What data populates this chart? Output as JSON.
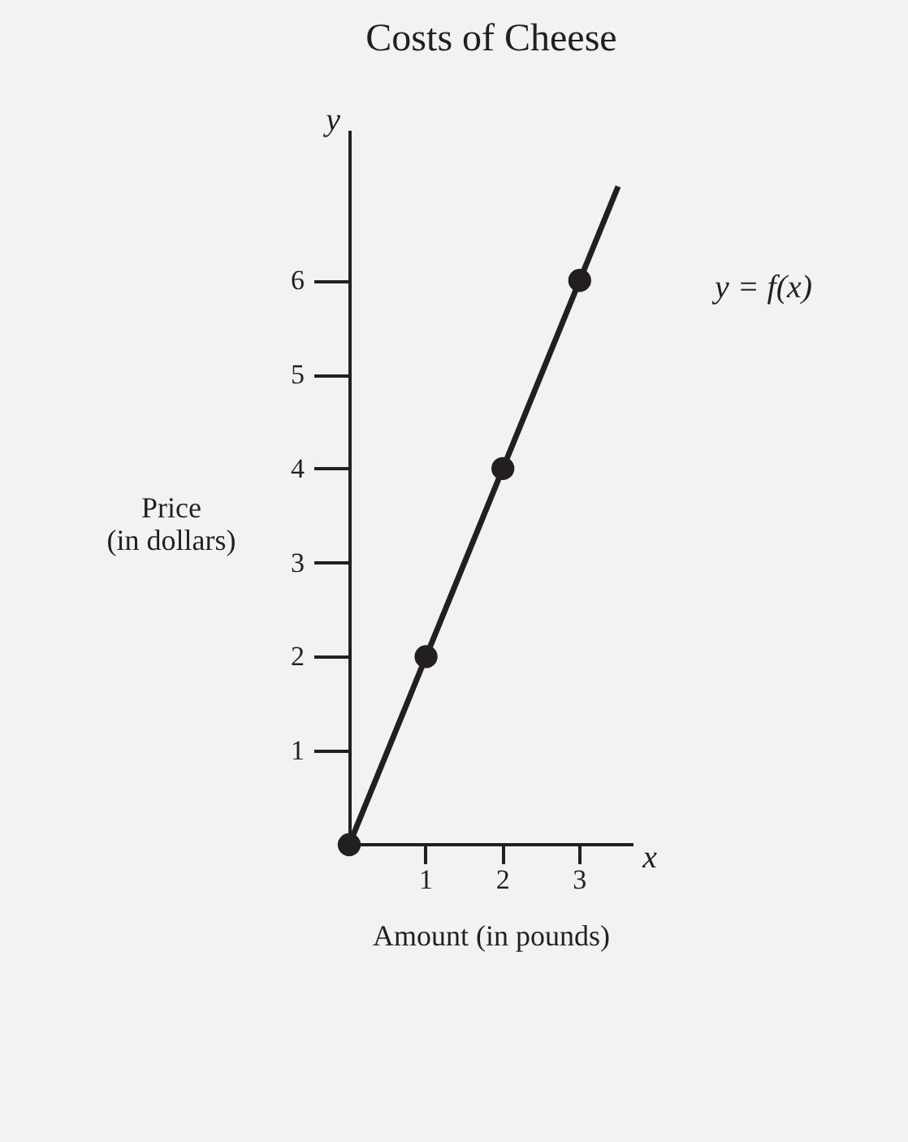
{
  "chart_data": {
    "type": "line",
    "title": "Costs of Cheese",
    "xlabel": "Amount (in pounds)",
    "ylabel": "Price (in dollars)",
    "annotations": [
      "y = f(x)",
      "y",
      "x"
    ],
    "xlim": [
      0,
      3.7
    ],
    "ylim": [
      0,
      7.6
    ],
    "xticks": [
      1,
      2,
      3
    ],
    "yticks": [
      1,
      2,
      3,
      4,
      5,
      6
    ],
    "series": [
      {
        "color": "#231f20",
        "x": [
          0,
          3.5
        ],
        "values": [
          0,
          7
        ],
        "line_style": "solid"
      },
      {
        "type": "scatter",
        "color": "#231f20",
        "x": [
          0,
          1,
          2,
          3
        ],
        "values": [
          0,
          2,
          4,
          6
        ],
        "marker": "circle"
      }
    ]
  }
}
